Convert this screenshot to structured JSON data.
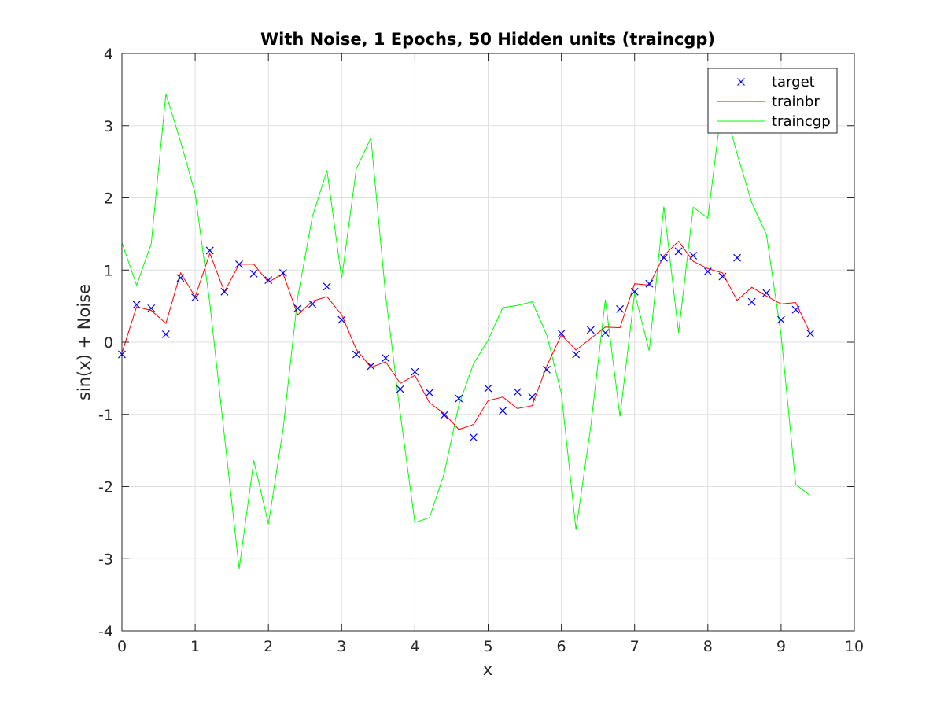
{
  "chart_data": {
    "type": "line",
    "title": "With Noise, 1 Epochs, 50 Hidden units (traincgp)",
    "xlabel": "x",
    "ylabel": "sin(x) + Noise",
    "xlim": [
      0,
      10
    ],
    "ylim": [
      -4,
      4
    ],
    "xticks": [
      0,
      1,
      2,
      3,
      4,
      5,
      6,
      7,
      8,
      9,
      10
    ],
    "yticks": [
      -4,
      -3,
      -2,
      -1,
      0,
      1,
      2,
      3,
      4
    ],
    "grid": true,
    "legend_position": "top-right",
    "x": [
      0,
      0.2,
      0.4,
      0.6,
      0.8,
      1.0,
      1.2,
      1.4,
      1.6,
      1.8,
      2.0,
      2.2,
      2.4,
      2.6,
      2.8,
      3.0,
      3.2,
      3.4,
      3.6,
      3.8,
      4.0,
      4.2,
      4.4,
      4.6,
      4.8,
      5.0,
      5.2,
      5.4,
      5.6,
      5.8,
      6.0,
      6.2,
      6.4,
      6.6,
      6.8,
      7.0,
      7.2,
      7.4,
      7.6,
      7.8,
      8.0,
      8.2,
      8.4,
      8.6,
      8.8,
      9.0,
      9.2,
      9.4
    ],
    "series": [
      {
        "name": "target",
        "style": "marker-x",
        "color": "#0000ff",
        "values": [
          -0.17,
          0.52,
          0.47,
          0.11,
          0.89,
          0.62,
          1.27,
          0.7,
          1.08,
          0.95,
          0.86,
          0.96,
          0.47,
          0.53,
          0.77,
          0.31,
          -0.17,
          -0.33,
          -0.22,
          -0.65,
          -0.41,
          -0.7,
          -1.01,
          -0.78,
          -1.32,
          -0.64,
          -0.95,
          -0.69,
          -0.76,
          -0.38,
          0.12,
          -0.17,
          0.17,
          0.13,
          0.46,
          0.7,
          0.81,
          1.17,
          1.26,
          1.2,
          0.98,
          0.91,
          1.17,
          0.56,
          0.68,
          0.31,
          0.45,
          0.12
        ]
      },
      {
        "name": "trainbr",
        "style": "line",
        "color": "#ff0000",
        "values": [
          -0.15,
          0.49,
          0.44,
          0.26,
          0.96,
          0.63,
          1.23,
          0.7,
          1.08,
          1.08,
          0.83,
          0.95,
          0.38,
          0.57,
          0.63,
          0.38,
          -0.1,
          -0.35,
          -0.27,
          -0.57,
          -0.46,
          -0.84,
          -0.99,
          -1.21,
          -1.14,
          -0.81,
          -0.76,
          -0.92,
          -0.88,
          -0.33,
          0.1,
          -0.11,
          0.05,
          0.21,
          0.2,
          0.81,
          0.79,
          1.2,
          1.4,
          1.12,
          1.02,
          0.96,
          0.58,
          0.76,
          0.64,
          0.53,
          0.55,
          0.12
        ]
      },
      {
        "name": "traincgp",
        "style": "line",
        "color": "#00ff00",
        "values": [
          1.38,
          0.79,
          1.36,
          3.44,
          2.78,
          2.06,
          0.54,
          -1.3,
          -3.14,
          -1.64,
          -2.52,
          -1.21,
          0.62,
          1.74,
          2.38,
          0.88,
          2.4,
          2.83,
          0.65,
          -0.99,
          -2.5,
          -2.43,
          -1.82,
          -0.87,
          -0.3,
          0.03,
          0.48,
          0.51,
          0.56,
          0.1,
          -0.71,
          -2.6,
          -1.18,
          0.59,
          -1.03,
          0.68,
          -0.12,
          1.88,
          0.13,
          1.87,
          1.72,
          3.36,
          2.61,
          1.93,
          1.49,
          0.1,
          -1.97,
          -2.13
        ]
      }
    ]
  }
}
